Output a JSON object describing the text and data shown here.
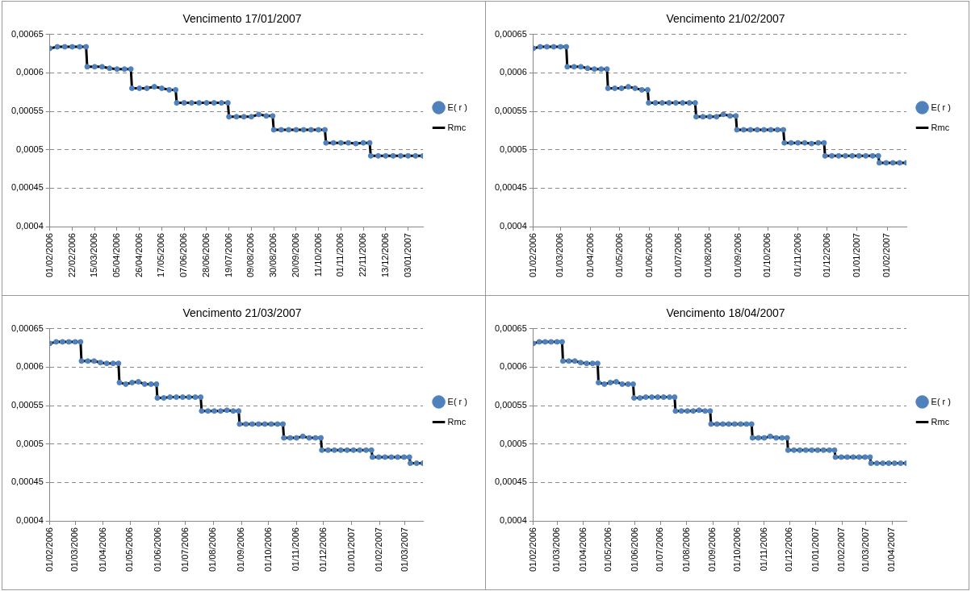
{
  "chart_data": [
    {
      "type": "scatter",
      "title": "Vencimento 17/01/2007",
      "legend": "right",
      "grid": "y",
      "xlim": [
        "2006-02-01",
        "2007-01-17"
      ],
      "xticks": [
        {
          "value": "2006-02-01",
          "label": "01/02/2006"
        },
        {
          "value": "2006-02-22",
          "label": "22/02/2006"
        },
        {
          "value": "2006-03-15",
          "label": "15/03/2006"
        },
        {
          "value": "2006-04-05",
          "label": "05/04/2006"
        },
        {
          "value": "2006-04-26",
          "label": "26/04/2006"
        },
        {
          "value": "2006-05-17",
          "label": "17/05/2006"
        },
        {
          "value": "2006-06-07",
          "label": "07/06/2006"
        },
        {
          "value": "2006-06-28",
          "label": "28/06/2006"
        },
        {
          "value": "2006-07-19",
          "label": "19/07/2006"
        },
        {
          "value": "2006-08-09",
          "label": "09/08/2006"
        },
        {
          "value": "2006-08-30",
          "label": "30/08/2006"
        },
        {
          "value": "2006-09-20",
          "label": "20/09/2006"
        },
        {
          "value": "2006-10-11",
          "label": "11/10/2006"
        },
        {
          "value": "2006-11-01",
          "label": "01/11/2006"
        },
        {
          "value": "2006-11-22",
          "label": "22/11/2006"
        },
        {
          "value": "2006-12-13",
          "label": "13/12/2006"
        },
        {
          "value": "2007-01-03",
          "label": "03/01/2007"
        }
      ],
      "ylim": [
        0.0004,
        0.00065
      ],
      "yticks": [
        {
          "value": 0.0004,
          "label": "0,0004"
        },
        {
          "value": 0.00045,
          "label": "0,00045"
        },
        {
          "value": 0.0005,
          "label": "0,0005"
        },
        {
          "value": 0.00055,
          "label": "0,00055"
        },
        {
          "value": 0.0006,
          "label": "0,0006"
        },
        {
          "value": 0.00065,
          "label": "0,00065"
        }
      ],
      "x": [
        "2006-02-01",
        "2006-02-08",
        "2006-02-15",
        "2006-02-22",
        "2006-03-01",
        "2006-03-07",
        "2006-03-08",
        "2006-03-15",
        "2006-03-22",
        "2006-03-29",
        "2006-04-05",
        "2006-04-12",
        "2006-04-18",
        "2006-04-19",
        "2006-04-26",
        "2006-05-03",
        "2006-05-10",
        "2006-05-17",
        "2006-05-24",
        "2006-05-30",
        "2006-05-31",
        "2006-06-07",
        "2006-06-14",
        "2006-06-21",
        "2006-06-28",
        "2006-07-05",
        "2006-07-12",
        "2006-07-18",
        "2006-07-19",
        "2006-07-26",
        "2006-08-02",
        "2006-08-09",
        "2006-08-16",
        "2006-08-23",
        "2006-08-29",
        "2006-08-30",
        "2006-09-06",
        "2006-09-13",
        "2006-09-20",
        "2006-09-27",
        "2006-10-04",
        "2006-10-11",
        "2006-10-17",
        "2006-10-18",
        "2006-10-25",
        "2006-11-01",
        "2006-11-08",
        "2006-11-15",
        "2006-11-22",
        "2006-11-28",
        "2006-11-29",
        "2006-12-06",
        "2006-12-13",
        "2006-12-20",
        "2006-12-27",
        "2007-01-03",
        "2007-01-10",
        "2007-01-17"
      ],
      "series": [
        {
          "name": "E( r )",
          "type": "scatter",
          "marker": "circle",
          "color": "#4f81bd",
          "values": [
            0.000632,
            0.000634,
            0.000634,
            0.000634,
            0.000634,
            0.000634,
            0.000608,
            0.000608,
            0.000608,
            0.000606,
            0.000605,
            0.000605,
            0.000605,
            0.00058,
            0.00058,
            0.00058,
            0.000582,
            0.00058,
            0.000578,
            0.000578,
            0.000561,
            0.000561,
            0.000561,
            0.000561,
            0.000561,
            0.000561,
            0.000561,
            0.000561,
            0.000543,
            0.000543,
            0.000543,
            0.000543,
            0.000546,
            0.000544,
            0.000544,
            0.000526,
            0.000526,
            0.000526,
            0.000526,
            0.000526,
            0.000526,
            0.000526,
            0.000526,
            0.000509,
            0.000509,
            0.000509,
            0.000509,
            0.000508,
            0.000509,
            0.000509,
            0.000492,
            0.000492,
            0.000492,
            0.000492,
            0.000492,
            0.000492,
            0.000492,
            0.000492
          ]
        },
        {
          "name": "Rmc",
          "type": "line",
          "marker": "none",
          "color": "#000000",
          "values": [
            0.000632,
            0.000634,
            0.000634,
            0.000634,
            0.000634,
            0.000634,
            0.000608,
            0.000608,
            0.000608,
            0.000606,
            0.000605,
            0.000605,
            0.000605,
            0.00058,
            0.00058,
            0.00058,
            0.000582,
            0.00058,
            0.000578,
            0.000578,
            0.000561,
            0.000561,
            0.000561,
            0.000561,
            0.000561,
            0.000561,
            0.000561,
            0.000561,
            0.000543,
            0.000543,
            0.000543,
            0.000543,
            0.000546,
            0.000544,
            0.000544,
            0.000526,
            0.000526,
            0.000526,
            0.000526,
            0.000526,
            0.000526,
            0.000526,
            0.000526,
            0.000509,
            0.000509,
            0.000509,
            0.000509,
            0.000508,
            0.000509,
            0.000509,
            0.000492,
            0.000492,
            0.000492,
            0.000492,
            0.000492,
            0.000492,
            0.000492,
            0.000492
          ]
        }
      ]
    },
    {
      "type": "scatter",
      "title": "Vencimento 21/02/2007",
      "legend": "right",
      "grid": "y",
      "xlim": [
        "2006-02-01",
        "2007-02-21"
      ],
      "xticks": [
        {
          "value": "2006-02-01",
          "label": "01/02/2006"
        },
        {
          "value": "2006-03-01",
          "label": "01/03/2006"
        },
        {
          "value": "2006-04-01",
          "label": "01/04/2006"
        },
        {
          "value": "2006-05-01",
          "label": "01/05/2006"
        },
        {
          "value": "2006-06-01",
          "label": "01/06/2006"
        },
        {
          "value": "2006-07-01",
          "label": "01/07/2006"
        },
        {
          "value": "2006-08-01",
          "label": "01/08/2006"
        },
        {
          "value": "2006-09-01",
          "label": "01/09/2006"
        },
        {
          "value": "2006-10-01",
          "label": "01/10/2006"
        },
        {
          "value": "2006-11-01",
          "label": "01/11/2006"
        },
        {
          "value": "2006-12-01",
          "label": "01/12/2006"
        },
        {
          "value": "2007-01-01",
          "label": "01/01/2007"
        },
        {
          "value": "2007-02-01",
          "label": "01/02/2007"
        }
      ],
      "ylim": [
        0.0004,
        0.00065
      ],
      "yticks": [
        {
          "value": 0.0004,
          "label": "0,0004"
        },
        {
          "value": 0.00045,
          "label": "0,00045"
        },
        {
          "value": 0.0005,
          "label": "0,0005"
        },
        {
          "value": 0.00055,
          "label": "0,00055"
        },
        {
          "value": 0.0006,
          "label": "0,0006"
        },
        {
          "value": 0.00065,
          "label": "0,00065"
        }
      ],
      "x": [
        "2006-02-01",
        "2006-02-08",
        "2006-02-15",
        "2006-02-22",
        "2006-03-01",
        "2006-03-07",
        "2006-03-08",
        "2006-03-15",
        "2006-03-22",
        "2006-03-29",
        "2006-04-05",
        "2006-04-12",
        "2006-04-18",
        "2006-04-19",
        "2006-04-26",
        "2006-05-03",
        "2006-05-10",
        "2006-05-17",
        "2006-05-24",
        "2006-05-30",
        "2006-05-31",
        "2006-06-07",
        "2006-06-14",
        "2006-06-21",
        "2006-06-28",
        "2006-07-05",
        "2006-07-12",
        "2006-07-18",
        "2006-07-19",
        "2006-07-26",
        "2006-08-02",
        "2006-08-09",
        "2006-08-16",
        "2006-08-23",
        "2006-08-29",
        "2006-08-30",
        "2006-09-06",
        "2006-09-13",
        "2006-09-20",
        "2006-09-27",
        "2006-10-04",
        "2006-10-11",
        "2006-10-17",
        "2006-10-18",
        "2006-10-25",
        "2006-11-01",
        "2006-11-08",
        "2006-11-15",
        "2006-11-22",
        "2006-11-28",
        "2006-11-29",
        "2006-12-06",
        "2006-12-13",
        "2006-12-20",
        "2006-12-27",
        "2007-01-03",
        "2007-01-10",
        "2007-01-17",
        "2007-01-23",
        "2007-01-24",
        "2007-01-31",
        "2007-02-07",
        "2007-02-14",
        "2007-02-21"
      ],
      "series": [
        {
          "name": "E( r )",
          "type": "scatter",
          "marker": "circle",
          "color": "#4f81bd",
          "values": [
            0.000632,
            0.000634,
            0.000634,
            0.000634,
            0.000634,
            0.000634,
            0.000608,
            0.000608,
            0.000608,
            0.000606,
            0.000605,
            0.000605,
            0.000605,
            0.00058,
            0.00058,
            0.00058,
            0.000582,
            0.00058,
            0.000578,
            0.000578,
            0.000561,
            0.000561,
            0.000561,
            0.000561,
            0.000561,
            0.000561,
            0.000561,
            0.000561,
            0.000543,
            0.000543,
            0.000543,
            0.000543,
            0.000546,
            0.000544,
            0.000544,
            0.000526,
            0.000526,
            0.000526,
            0.000526,
            0.000526,
            0.000526,
            0.000526,
            0.000526,
            0.000509,
            0.000509,
            0.000509,
            0.000509,
            0.000508,
            0.000509,
            0.000509,
            0.000492,
            0.000492,
            0.000492,
            0.000492,
            0.000492,
            0.000492,
            0.000492,
            0.000492,
            0.000492,
            0.000483,
            0.000483,
            0.000483,
            0.000483,
            0.000483
          ]
        },
        {
          "name": "Rmc",
          "type": "line",
          "marker": "none",
          "color": "#000000",
          "values": [
            0.000632,
            0.000634,
            0.000634,
            0.000634,
            0.000634,
            0.000634,
            0.000608,
            0.000608,
            0.000608,
            0.000606,
            0.000605,
            0.000605,
            0.000605,
            0.00058,
            0.00058,
            0.00058,
            0.000582,
            0.00058,
            0.000578,
            0.000578,
            0.000561,
            0.000561,
            0.000561,
            0.000561,
            0.000561,
            0.000561,
            0.000561,
            0.000561,
            0.000543,
            0.000543,
            0.000543,
            0.000543,
            0.000546,
            0.000544,
            0.000544,
            0.000526,
            0.000526,
            0.000526,
            0.000526,
            0.000526,
            0.000526,
            0.000526,
            0.000526,
            0.000509,
            0.000509,
            0.000509,
            0.000509,
            0.000508,
            0.000509,
            0.000509,
            0.000492,
            0.000492,
            0.000492,
            0.000492,
            0.000492,
            0.000492,
            0.000492,
            0.000492,
            0.000492,
            0.000483,
            0.000483,
            0.000483,
            0.000483,
            0.000483
          ]
        }
      ]
    },
    {
      "type": "scatter",
      "title": "Vencimento 21/03/2007",
      "legend": "right",
      "grid": "y",
      "xlim": [
        "2006-02-01",
        "2007-03-21"
      ],
      "xticks": [
        {
          "value": "2006-02-01",
          "label": "01/02/2006"
        },
        {
          "value": "2006-03-01",
          "label": "01/03/2006"
        },
        {
          "value": "2006-04-01",
          "label": "01/04/2006"
        },
        {
          "value": "2006-05-01",
          "label": "01/05/2006"
        },
        {
          "value": "2006-06-01",
          "label": "01/06/2006"
        },
        {
          "value": "2006-07-01",
          "label": "01/07/2006"
        },
        {
          "value": "2006-08-01",
          "label": "01/08/2006"
        },
        {
          "value": "2006-09-01",
          "label": "01/09/2006"
        },
        {
          "value": "2006-10-01",
          "label": "01/10/2006"
        },
        {
          "value": "2006-11-01",
          "label": "01/11/2006"
        },
        {
          "value": "2006-12-01",
          "label": "01/12/2006"
        },
        {
          "value": "2007-01-01",
          "label": "01/01/2007"
        },
        {
          "value": "2007-02-01",
          "label": "01/02/2007"
        },
        {
          "value": "2007-03-01",
          "label": "01/03/2007"
        }
      ],
      "ylim": [
        0.0004,
        0.00065
      ],
      "yticks": [
        {
          "value": 0.0004,
          "label": "0,0004"
        },
        {
          "value": 0.00045,
          "label": "0,00045"
        },
        {
          "value": 0.0005,
          "label": "0,0005"
        },
        {
          "value": 0.00055,
          "label": "0,00055"
        },
        {
          "value": 0.0006,
          "label": "0,0006"
        },
        {
          "value": 0.00065,
          "label": "0,00065"
        }
      ],
      "x": [
        "2006-02-01",
        "2006-02-08",
        "2006-02-15",
        "2006-02-22",
        "2006-03-01",
        "2006-03-07",
        "2006-03-08",
        "2006-03-15",
        "2006-03-22",
        "2006-03-29",
        "2006-04-05",
        "2006-04-12",
        "2006-04-18",
        "2006-04-19",
        "2006-04-26",
        "2006-05-03",
        "2006-05-10",
        "2006-05-17",
        "2006-05-24",
        "2006-05-30",
        "2006-05-31",
        "2006-06-07",
        "2006-06-14",
        "2006-06-21",
        "2006-06-28",
        "2006-07-05",
        "2006-07-12",
        "2006-07-18",
        "2006-07-19",
        "2006-07-26",
        "2006-08-02",
        "2006-08-09",
        "2006-08-16",
        "2006-08-23",
        "2006-08-29",
        "2006-08-30",
        "2006-09-06",
        "2006-09-13",
        "2006-09-20",
        "2006-09-27",
        "2006-10-04",
        "2006-10-11",
        "2006-10-17",
        "2006-10-18",
        "2006-10-25",
        "2006-11-01",
        "2006-11-08",
        "2006-11-15",
        "2006-11-22",
        "2006-11-28",
        "2006-11-29",
        "2006-12-06",
        "2006-12-13",
        "2006-12-20",
        "2006-12-27",
        "2007-01-03",
        "2007-01-10",
        "2007-01-17",
        "2007-01-23",
        "2007-01-24",
        "2007-01-31",
        "2007-02-07",
        "2007-02-14",
        "2007-02-21",
        "2007-02-28",
        "2007-03-06",
        "2007-03-07",
        "2007-03-14",
        "2007-03-21"
      ],
      "series": [
        {
          "name": "E( r )",
          "type": "scatter",
          "marker": "circle",
          "color": "#4f81bd",
          "values": [
            0.000631,
            0.000633,
            0.000633,
            0.000633,
            0.000633,
            0.000633,
            0.000608,
            0.000608,
            0.000608,
            0.000606,
            0.000605,
            0.000605,
            0.000605,
            0.00058,
            0.000578,
            0.00058,
            0.000581,
            0.000578,
            0.000578,
            0.000578,
            0.00056,
            0.00056,
            0.000561,
            0.000561,
            0.000561,
            0.000561,
            0.000561,
            0.000561,
            0.000543,
            0.000543,
            0.000543,
            0.000543,
            0.000544,
            0.000543,
            0.000543,
            0.000526,
            0.000526,
            0.000526,
            0.000526,
            0.000526,
            0.000526,
            0.000526,
            0.000526,
            0.000508,
            0.000508,
            0.000508,
            0.00051,
            0.000508,
            0.000508,
            0.000508,
            0.000492,
            0.000492,
            0.000492,
            0.000492,
            0.000492,
            0.000492,
            0.000492,
            0.000492,
            0.000492,
            0.000483,
            0.000483,
            0.000483,
            0.000483,
            0.000483,
            0.000483,
            0.000483,
            0.000475,
            0.000475,
            0.000475
          ]
        },
        {
          "name": "Rmc",
          "type": "line",
          "marker": "none",
          "color": "#000000",
          "values": [
            0.000631,
            0.000633,
            0.000633,
            0.000633,
            0.000633,
            0.000633,
            0.000608,
            0.000608,
            0.000608,
            0.000606,
            0.000605,
            0.000605,
            0.000605,
            0.00058,
            0.000578,
            0.00058,
            0.000581,
            0.000578,
            0.000578,
            0.000578,
            0.00056,
            0.00056,
            0.000561,
            0.000561,
            0.000561,
            0.000561,
            0.000561,
            0.000561,
            0.000543,
            0.000543,
            0.000543,
            0.000543,
            0.000544,
            0.000543,
            0.000543,
            0.000526,
            0.000526,
            0.000526,
            0.000526,
            0.000526,
            0.000526,
            0.000526,
            0.000526,
            0.000508,
            0.000508,
            0.000508,
            0.00051,
            0.000508,
            0.000508,
            0.000508,
            0.000492,
            0.000492,
            0.000492,
            0.000492,
            0.000492,
            0.000492,
            0.000492,
            0.000492,
            0.000492,
            0.000483,
            0.000483,
            0.000483,
            0.000483,
            0.000483,
            0.000483,
            0.000483,
            0.000475,
            0.000475,
            0.000475
          ]
        }
      ]
    },
    {
      "type": "scatter",
      "title": "Vencimento 18/04/2007",
      "legend": "right",
      "grid": "y",
      "xlim": [
        "2006-02-01",
        "2007-04-18"
      ],
      "xticks": [
        {
          "value": "2006-02-01",
          "label": "01/02/2006"
        },
        {
          "value": "2006-03-01",
          "label": "01/03/2006"
        },
        {
          "value": "2006-04-01",
          "label": "01/04/2006"
        },
        {
          "value": "2006-05-01",
          "label": "01/05/2006"
        },
        {
          "value": "2006-06-01",
          "label": "01/06/2006"
        },
        {
          "value": "2006-07-01",
          "label": "01/07/2006"
        },
        {
          "value": "2006-08-01",
          "label": "01/08/2006"
        },
        {
          "value": "2006-09-01",
          "label": "01/09/2006"
        },
        {
          "value": "2006-10-01",
          "label": "01/10/2006"
        },
        {
          "value": "2006-11-01",
          "label": "01/11/2006"
        },
        {
          "value": "2006-12-01",
          "label": "01/12/2006"
        },
        {
          "value": "2007-01-01",
          "label": "01/01/2007"
        },
        {
          "value": "2007-02-01",
          "label": "01/02/2007"
        },
        {
          "value": "2007-03-01",
          "label": "01/03/2007"
        },
        {
          "value": "2007-04-01",
          "label": "01/04/2007"
        }
      ],
      "ylim": [
        0.0004,
        0.00065
      ],
      "yticks": [
        {
          "value": 0.0004,
          "label": "0,0004"
        },
        {
          "value": 0.00045,
          "label": "0,00045"
        },
        {
          "value": 0.0005,
          "label": "0,0005"
        },
        {
          "value": 0.00055,
          "label": "0,00055"
        },
        {
          "value": 0.0006,
          "label": "0,0006"
        },
        {
          "value": 0.00065,
          "label": "0,00065"
        }
      ],
      "x": [
        "2006-02-01",
        "2006-02-08",
        "2006-02-15",
        "2006-02-22",
        "2006-03-01",
        "2006-03-07",
        "2006-03-08",
        "2006-03-15",
        "2006-03-22",
        "2006-03-29",
        "2006-04-05",
        "2006-04-12",
        "2006-04-18",
        "2006-04-19",
        "2006-04-26",
        "2006-05-03",
        "2006-05-10",
        "2006-05-17",
        "2006-05-24",
        "2006-05-30",
        "2006-05-31",
        "2006-06-07",
        "2006-06-14",
        "2006-06-21",
        "2006-06-28",
        "2006-07-05",
        "2006-07-12",
        "2006-07-18",
        "2006-07-19",
        "2006-07-26",
        "2006-08-02",
        "2006-08-09",
        "2006-08-16",
        "2006-08-23",
        "2006-08-29",
        "2006-08-30",
        "2006-09-06",
        "2006-09-13",
        "2006-09-20",
        "2006-09-27",
        "2006-10-04",
        "2006-10-11",
        "2006-10-17",
        "2006-10-18",
        "2006-10-25",
        "2006-11-01",
        "2006-11-08",
        "2006-11-15",
        "2006-11-22",
        "2006-11-28",
        "2006-11-29",
        "2006-12-06",
        "2006-12-13",
        "2006-12-20",
        "2006-12-27",
        "2007-01-03",
        "2007-01-10",
        "2007-01-17",
        "2007-01-23",
        "2007-01-24",
        "2007-01-31",
        "2007-02-07",
        "2007-02-14",
        "2007-02-21",
        "2007-02-28",
        "2007-03-06",
        "2007-03-07",
        "2007-03-14",
        "2007-03-21",
        "2007-03-28",
        "2007-04-04",
        "2007-04-11",
        "2007-04-18"
      ],
      "series": [
        {
          "name": "E( r )",
          "type": "scatter",
          "marker": "circle",
          "color": "#4f81bd",
          "values": [
            0.000631,
            0.000633,
            0.000633,
            0.000633,
            0.000633,
            0.000633,
            0.000608,
            0.000608,
            0.000608,
            0.000606,
            0.000605,
            0.000605,
            0.000605,
            0.00058,
            0.000578,
            0.00058,
            0.000581,
            0.000578,
            0.000578,
            0.000578,
            0.00056,
            0.00056,
            0.000561,
            0.000561,
            0.000561,
            0.000561,
            0.000561,
            0.000561,
            0.000543,
            0.000543,
            0.000543,
            0.000543,
            0.000544,
            0.000543,
            0.000543,
            0.000526,
            0.000526,
            0.000526,
            0.000526,
            0.000526,
            0.000526,
            0.000526,
            0.000526,
            0.000508,
            0.000508,
            0.000508,
            0.00051,
            0.000508,
            0.000508,
            0.000508,
            0.000492,
            0.000492,
            0.000492,
            0.000492,
            0.000492,
            0.000492,
            0.000492,
            0.000492,
            0.000492,
            0.000483,
            0.000483,
            0.000483,
            0.000483,
            0.000483,
            0.000483,
            0.000483,
            0.000475,
            0.000475,
            0.000475,
            0.000475,
            0.000475,
            0.000475,
            0.000475
          ]
        },
        {
          "name": "Rmc",
          "type": "line",
          "marker": "none",
          "color": "#000000",
          "values": [
            0.000631,
            0.000633,
            0.000633,
            0.000633,
            0.000633,
            0.000633,
            0.000608,
            0.000608,
            0.000608,
            0.000606,
            0.000605,
            0.000605,
            0.000605,
            0.00058,
            0.000578,
            0.00058,
            0.000581,
            0.000578,
            0.000578,
            0.000578,
            0.00056,
            0.00056,
            0.000561,
            0.000561,
            0.000561,
            0.000561,
            0.000561,
            0.000561,
            0.000543,
            0.000543,
            0.000543,
            0.000543,
            0.000544,
            0.000543,
            0.000543,
            0.000526,
            0.000526,
            0.000526,
            0.000526,
            0.000526,
            0.000526,
            0.000526,
            0.000526,
            0.000508,
            0.000508,
            0.000508,
            0.00051,
            0.000508,
            0.000508,
            0.000508,
            0.000492,
            0.000492,
            0.000492,
            0.000492,
            0.000492,
            0.000492,
            0.000492,
            0.000492,
            0.000492,
            0.000483,
            0.000483,
            0.000483,
            0.000483,
            0.000483,
            0.000483,
            0.000483,
            0.000475,
            0.000475,
            0.000475,
            0.000475,
            0.000475,
            0.000475,
            0.000475
          ]
        }
      ]
    }
  ]
}
